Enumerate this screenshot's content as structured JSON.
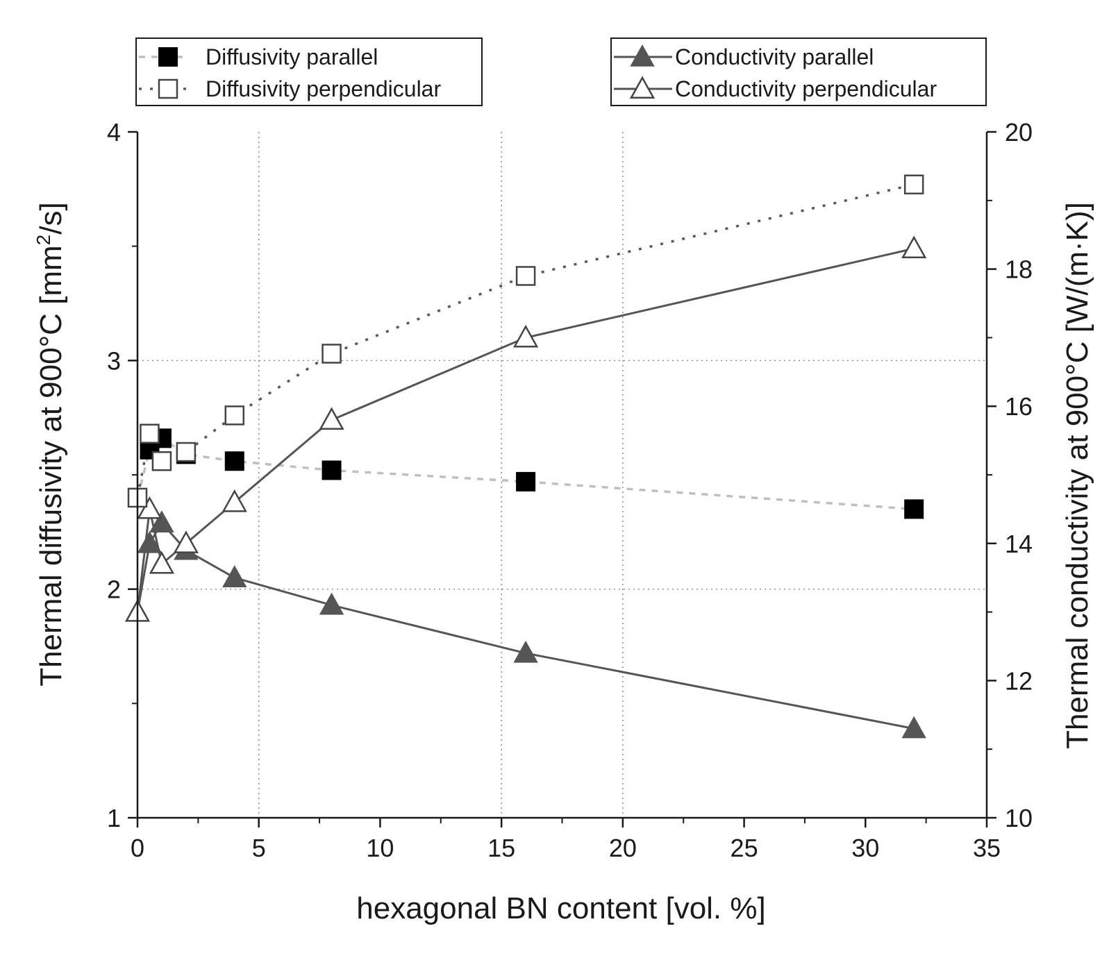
{
  "chart_data": {
    "type": "line",
    "title": "",
    "xlabel": "hexagonal BN content [vol. %]",
    "ylabel_left_main": "Thermal diffusivity at 900°C [mm",
    "ylabel_left_sup": "2",
    "ylabel_left_end": "/s]",
    "ylabel_right": "Thermal conductivity at 900°C [W/(m·K)]",
    "xlim": [
      0,
      35
    ],
    "ylim_left": [
      1,
      4
    ],
    "ylim_right": [
      10,
      20
    ],
    "xticks": [
      "0",
      "5",
      "10",
      "15",
      "20",
      "25",
      "30",
      "35"
    ],
    "yticks_left": [
      "1",
      "2",
      "3",
      "4"
    ],
    "yticks_right": [
      "10",
      "12",
      "14",
      "16",
      "18",
      "20"
    ],
    "grid": "dotted, partial",
    "series": [
      {
        "name": "Diffusivity parallel",
        "axis": "left",
        "marker": "square-filled",
        "line": "dashed-light",
        "x": [
          0,
          0.5,
          1,
          2,
          4,
          8,
          16,
          32
        ],
        "y": [
          2.4,
          2.61,
          2.66,
          2.59,
          2.56,
          2.52,
          2.47,
          2.35
        ]
      },
      {
        "name": "Diffusivity perpendicular",
        "axis": "left",
        "marker": "square-open",
        "line": "dotted-dark",
        "x": [
          0,
          0.5,
          1,
          2,
          4,
          8,
          16,
          32
        ],
        "y": [
          2.4,
          2.68,
          2.56,
          2.6,
          2.76,
          3.03,
          3.37,
          3.77
        ]
      },
      {
        "name": "Conductivity parallel",
        "axis": "right",
        "marker": "triangle-filled",
        "line": "solid",
        "x": [
          0,
          0.5,
          1,
          2,
          4,
          8,
          16,
          32
        ],
        "y": [
          13,
          14,
          14.3,
          13.9,
          13.5,
          13.1,
          12.4,
          11.3
        ]
      },
      {
        "name": "Conductivity perpendicular",
        "axis": "right",
        "marker": "triangle-open",
        "line": "solid",
        "x": [
          0,
          0.5,
          1,
          2,
          4,
          8,
          16,
          32
        ],
        "y": [
          13,
          14.5,
          13.7,
          14,
          14.6,
          15.8,
          17,
          18.3
        ]
      }
    ],
    "legend": [
      {
        "position": "top-left",
        "entries": [
          "Diffusivity parallel",
          "Diffusivity perpendicular"
        ]
      },
      {
        "position": "top-right",
        "entries": [
          "Conductivity parallel",
          "Conductivity perpendicular"
        ]
      }
    ]
  },
  "colors": {
    "axis": "#1a1a1a",
    "grid": "#8c8c8c",
    "diff_parallel_line": "#bfbfbf",
    "diff_perp_line": "#595959",
    "cond_line": "#555555",
    "cond_parallel_fill": "#555555"
  }
}
